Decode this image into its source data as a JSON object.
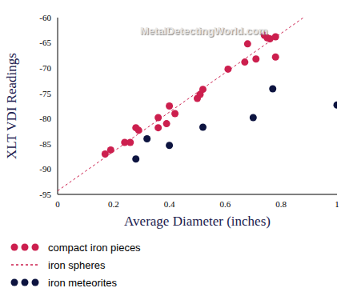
{
  "chart_data": {
    "type": "scatter",
    "x_label": "Average Diameter (inches)",
    "y_label": "XLT VDI Readings",
    "annotations": [
      "MetalDetectingWorld.com"
    ],
    "xlim": [
      0,
      1
    ],
    "xticks": [
      0,
      0.2,
      0.4,
      0.6,
      0.8,
      1
    ],
    "ylim": [
      -95,
      -60
    ],
    "yticks": [
      -95,
      -90,
      -85,
      -80,
      -75,
      -70,
      -65,
      -60
    ],
    "grid": false,
    "series": [
      {
        "name": "compact iron pieces",
        "type": "scatter",
        "marker": "circle",
        "color": "#cc1f4e",
        "x": [
          0.17,
          0.19,
          0.24,
          0.26,
          0.28,
          0.29,
          0.36,
          0.36,
          0.39,
          0.4,
          0.42,
          0.5,
          0.51,
          0.52,
          0.61,
          0.67,
          0.68,
          0.71,
          0.74,
          0.75,
          0.76,
          0.78,
          0.78
        ],
        "values": [
          -87,
          -86.2,
          -84.7,
          -84.7,
          -81.8,
          -82.3,
          -79.8,
          -81.8,
          -81,
          -77.5,
          -79,
          -76,
          -75.2,
          -74.2,
          -70.2,
          -68.8,
          -65.2,
          -68.2,
          -63.5,
          -64,
          -64.2,
          -63.8,
          -67.8
        ]
      },
      {
        "name": "iron spheres",
        "type": "line",
        "line_style": "dashed",
        "color": "#cc1f4e",
        "x": [
          0,
          0.88
        ],
        "values": [
          -94.3,
          -60
        ]
      },
      {
        "name": "iron meteorites",
        "type": "scatter",
        "marker": "circle",
        "color": "#0d1440",
        "x": [
          0.28,
          0.32,
          0.4,
          0.52,
          0.7,
          0.77,
          1
        ],
        "values": [
          -88,
          -84,
          -85.3,
          -81.7,
          -79.8,
          -74.1,
          -77.3
        ]
      }
    ]
  }
}
